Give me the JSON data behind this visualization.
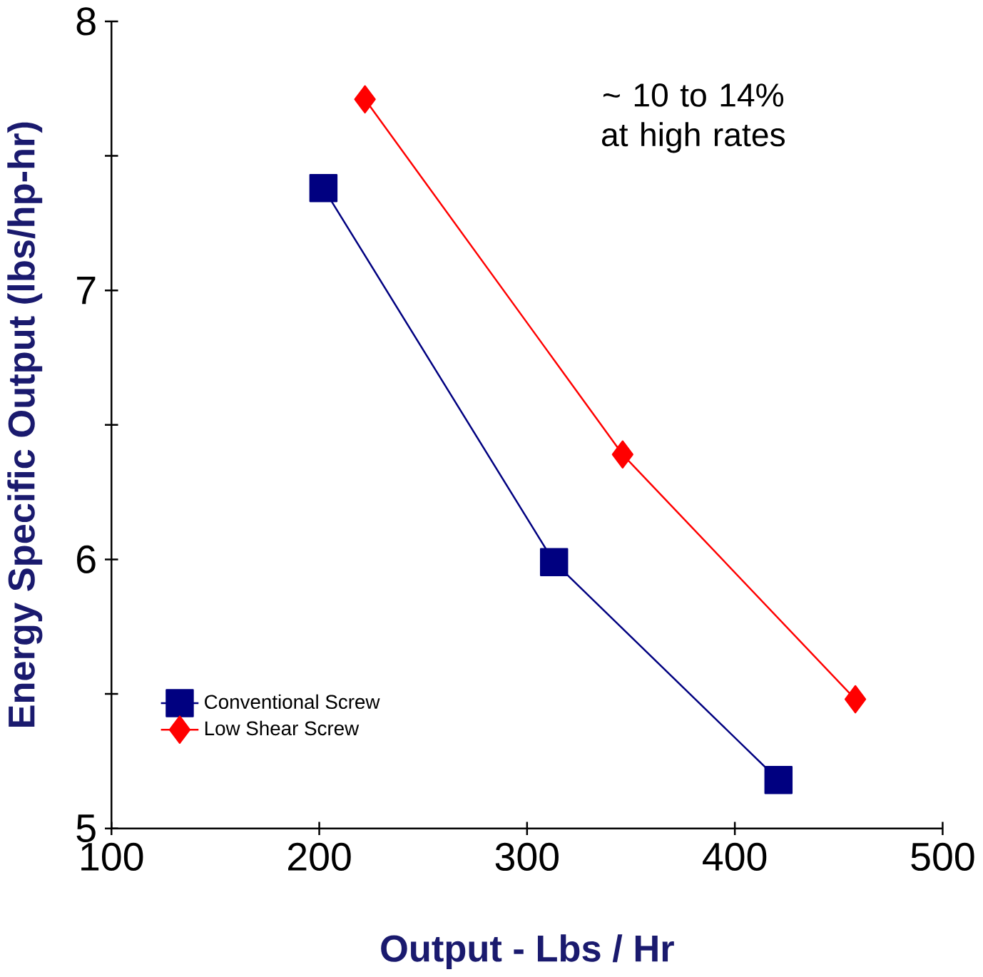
{
  "chart_data": {
    "type": "line",
    "xlabel": "Output - Lbs / Hr",
    "ylabel": "Energy Specific Output (lbs/hp-hr)",
    "xlim": [
      100,
      500
    ],
    "xticks": [
      100,
      200,
      300,
      400,
      500
    ],
    "ylim": [
      5,
      8
    ],
    "yticks": [
      5,
      {
        "value": 5.5,
        "label": null
      },
      6,
      {
        "value": 6.5,
        "label": null
      },
      7,
      {
        "value": 7.5,
        "label": null
      },
      8
    ],
    "series": [
      {
        "name": "Conventional Screw",
        "color": "#000080",
        "marker": "square",
        "x": [
          202,
          313,
          421
        ],
        "values": [
          7.38,
          5.99,
          5.18
        ]
      },
      {
        "name": "Low Shear Screw",
        "color": "#ff0000",
        "marker": "diamond",
        "x": [
          222,
          346,
          458
        ],
        "values": [
          7.71,
          6.39,
          5.48
        ]
      }
    ],
    "annotations": [
      {
        "text": "~ 10 to 14% at high rates"
      }
    ],
    "legend": "bottom left",
    "grid": false
  }
}
